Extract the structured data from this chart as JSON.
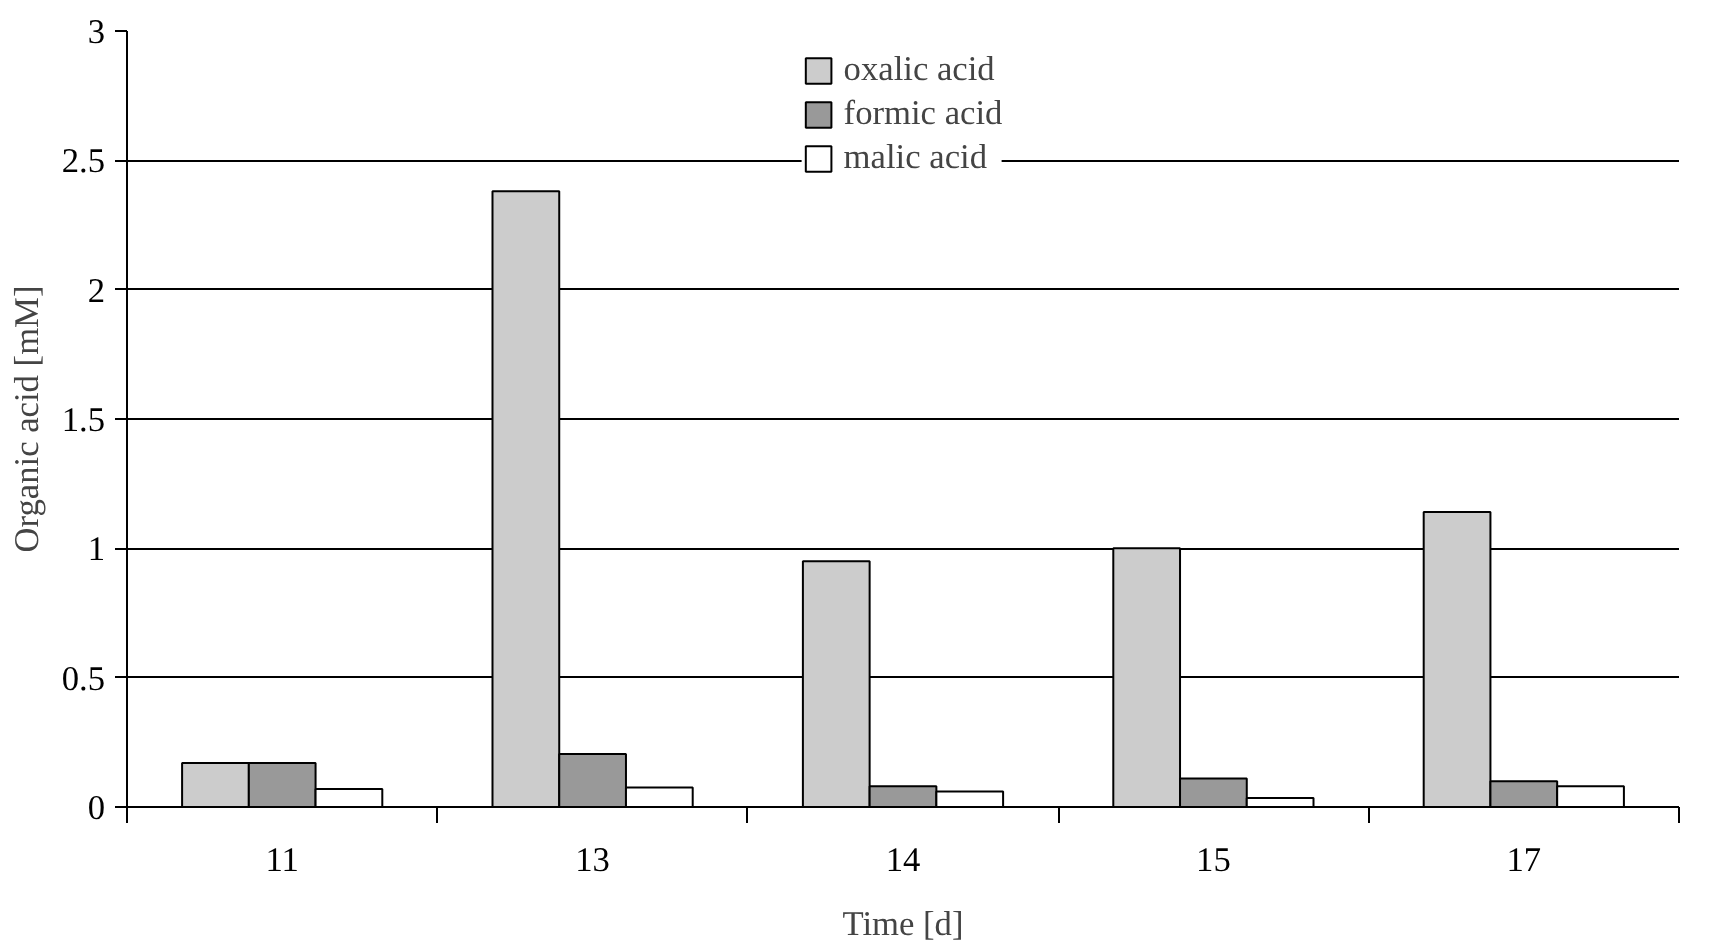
{
  "chart_data": {
    "type": "bar",
    "xlabel": "Time [d]",
    "ylabel": "Organic acid [mM]",
    "categories": [
      "11",
      "13",
      "14",
      "15",
      "17"
    ],
    "series": [
      {
        "name": "oxalic acid",
        "color": "#cccccc",
        "values": [
          0.17,
          2.38,
          0.95,
          1.0,
          1.14
        ]
      },
      {
        "name": "formic acid",
        "color": "#999999",
        "values": [
          0.17,
          0.205,
          0.08,
          0.11,
          0.1
        ]
      },
      {
        "name": "malic acid",
        "color": "#ffffff",
        "values": [
          0.07,
          0.075,
          0.06,
          0.035,
          0.08
        ]
      }
    ],
    "ylim": [
      0,
      3
    ],
    "yticks": [
      0,
      0.5,
      1,
      1.5,
      2,
      2.5,
      3
    ],
    "grid": "y",
    "legend": "top"
  }
}
